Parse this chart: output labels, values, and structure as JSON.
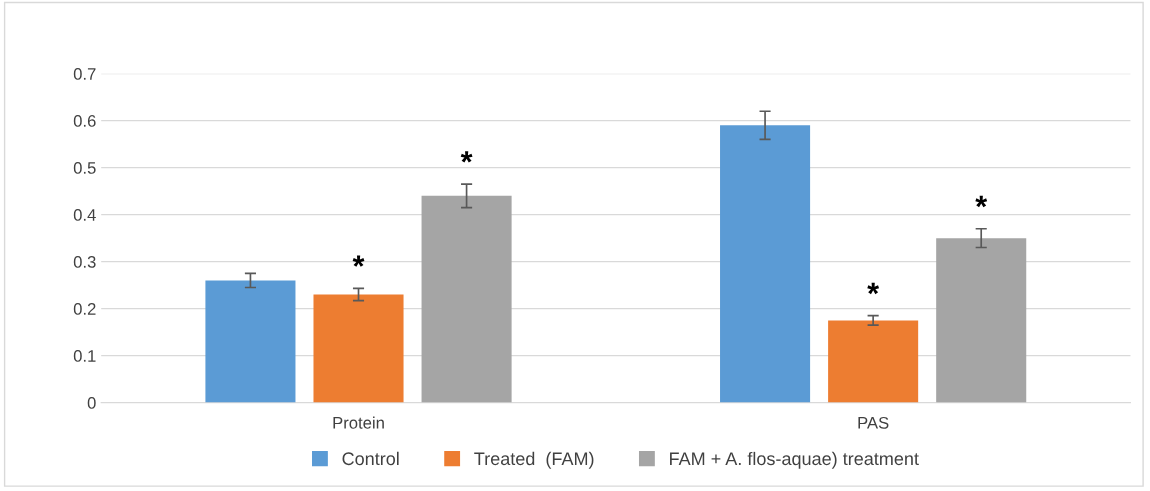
{
  "chart_data": {
    "type": "bar",
    "categories": [
      "Protein",
      "PAS"
    ],
    "series": [
      {
        "name": "Control",
        "color": "#5b9bd5",
        "values": [
          0.26,
          0.59
        ],
        "errors": [
          0.015,
          0.03
        ],
        "value_labels": [
          null,
          null
        ]
      },
      {
        "name": "Treated  (FAM)",
        "color": "#ed7d31",
        "values": [
          0.23,
          0.175
        ],
        "errors": [
          0.013,
          0.01
        ],
        "value_labels": [
          "*",
          "*"
        ]
      },
      {
        "name": "FAM + A. flos-aquae) treatment",
        "color": "#a5a5a5",
        "values": [
          0.44,
          0.35
        ],
        "errors": [
          0.025,
          0.02
        ],
        "value_labels": [
          "*",
          "*"
        ]
      }
    ],
    "ylim": [
      0,
      0.7
    ],
    "yticks": [
      0,
      0.1,
      0.2,
      0.3,
      0.4,
      0.5,
      0.6,
      0.7
    ],
    "grid": "y",
    "legend": "bottom"
  }
}
